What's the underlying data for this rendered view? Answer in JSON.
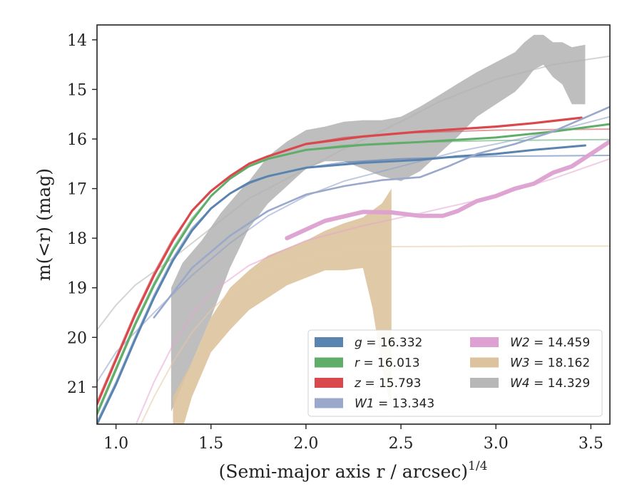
{
  "chart_data": {
    "type": "line",
    "xlabel": "(Semi-major axis r / arcsec)",
    "xlabel_sup": "1/4",
    "ylabel_main": "m(<r) (mag)",
    "xlim": [
      0.9,
      3.6
    ],
    "ylim": [
      21.75,
      13.7
    ],
    "y_inverted": true,
    "grid": false,
    "legend_position": "lower-right",
    "xticks": [
      1.0,
      1.5,
      2.0,
      2.5,
      3.0,
      3.5
    ],
    "xtick_labels": [
      "1.0",
      "1.5",
      "2.0",
      "2.5",
      "3.0",
      "3.5"
    ],
    "yticks": [
      14,
      15,
      16,
      17,
      18,
      19,
      20,
      21
    ],
    "ytick_labels": [
      "14",
      "15",
      "16",
      "17",
      "18",
      "19",
      "20",
      "21"
    ],
    "series": [
      {
        "key": "g",
        "name": "g = 16.332",
        "var": "g",
        "val": "= 16.332",
        "color": "#4c72b0",
        "fill": "#5a84b0",
        "model": [
          [
            0.9,
            21.7
          ],
          [
            1.0,
            20.9
          ],
          [
            1.1,
            20.0
          ],
          [
            1.2,
            19.15
          ],
          [
            1.3,
            18.4
          ],
          [
            1.4,
            17.8
          ],
          [
            1.5,
            17.4
          ],
          [
            1.6,
            17.1
          ],
          [
            1.7,
            16.9
          ],
          [
            1.8,
            16.75
          ],
          [
            2.0,
            16.58
          ],
          [
            2.2,
            16.47
          ],
          [
            2.5,
            16.4
          ],
          [
            3.0,
            16.35
          ],
          [
            3.6,
            16.33
          ]
        ],
        "obs": [
          [
            0.9,
            21.75
          ],
          [
            1.0,
            20.95
          ],
          [
            1.1,
            20.05
          ],
          [
            1.2,
            19.2
          ],
          [
            1.3,
            18.45
          ],
          [
            1.4,
            17.85
          ],
          [
            1.5,
            17.4
          ],
          [
            1.6,
            17.1
          ],
          [
            1.7,
            16.88
          ],
          [
            1.8,
            16.75
          ],
          [
            2.0,
            16.58
          ],
          [
            2.3,
            16.48
          ],
          [
            2.6,
            16.42
          ],
          [
            2.8,
            16.35
          ],
          [
            3.0,
            16.3
          ],
          [
            3.2,
            16.22
          ],
          [
            3.47,
            16.13
          ]
        ]
      },
      {
        "key": "r",
        "name": "r = 16.013",
        "var": "r",
        "val": "= 16.013",
        "color": "#55a868",
        "fill": "#60ad6a",
        "model": [
          [
            0.9,
            21.5
          ],
          [
            1.0,
            20.6
          ],
          [
            1.1,
            19.7
          ],
          [
            1.2,
            18.9
          ],
          [
            1.3,
            18.2
          ],
          [
            1.4,
            17.6
          ],
          [
            1.5,
            17.15
          ],
          [
            1.6,
            16.8
          ],
          [
            1.7,
            16.55
          ],
          [
            1.8,
            16.4
          ],
          [
            2.0,
            16.22
          ],
          [
            2.2,
            16.13
          ],
          [
            2.5,
            16.07
          ],
          [
            3.0,
            16.03
          ],
          [
            3.6,
            16.01
          ]
        ],
        "obs": [
          [
            0.9,
            21.55
          ],
          [
            1.0,
            20.65
          ],
          [
            1.1,
            19.75
          ],
          [
            1.2,
            18.95
          ],
          [
            1.3,
            18.25
          ],
          [
            1.4,
            17.65
          ],
          [
            1.5,
            17.15
          ],
          [
            1.6,
            16.8
          ],
          [
            1.7,
            16.55
          ],
          [
            1.8,
            16.4
          ],
          [
            2.0,
            16.22
          ],
          [
            2.3,
            16.12
          ],
          [
            2.6,
            16.06
          ],
          [
            3.0,
            15.97
          ],
          [
            3.3,
            15.85
          ],
          [
            3.6,
            15.7
          ]
        ]
      },
      {
        "key": "z",
        "name": "z = 15.793",
        "var": "z",
        "val": "= 15.793",
        "color": "#c44e52",
        "fill": "#d9484d",
        "model": [
          [
            0.9,
            21.3
          ],
          [
            1.0,
            20.4
          ],
          [
            1.1,
            19.5
          ],
          [
            1.2,
            18.7
          ],
          [
            1.3,
            18.0
          ],
          [
            1.4,
            17.45
          ],
          [
            1.5,
            17.05
          ],
          [
            1.6,
            16.75
          ],
          [
            1.7,
            16.5
          ],
          [
            1.8,
            16.35
          ],
          [
            2.0,
            16.1
          ],
          [
            2.2,
            15.97
          ],
          [
            2.5,
            15.88
          ],
          [
            3.0,
            15.82
          ],
          [
            3.6,
            15.8
          ]
        ],
        "obs": [
          [
            0.9,
            21.35
          ],
          [
            1.0,
            20.45
          ],
          [
            1.1,
            19.55
          ],
          [
            1.2,
            18.75
          ],
          [
            1.3,
            18.05
          ],
          [
            1.4,
            17.45
          ],
          [
            1.5,
            17.05
          ],
          [
            1.6,
            16.75
          ],
          [
            1.7,
            16.5
          ],
          [
            1.8,
            16.35
          ],
          [
            2.0,
            16.1
          ],
          [
            2.3,
            15.95
          ],
          [
            2.6,
            15.85
          ],
          [
            3.0,
            15.75
          ],
          [
            3.2,
            15.68
          ],
          [
            3.45,
            15.57
          ]
        ]
      },
      {
        "key": "W1",
        "name": "W1 = 13.343",
        "var": "W1",
        "val": "= 13.343",
        "color": "#8c9cc4",
        "fill": "#9aa8cb",
        "model": [
          [
            0.9,
            20.9
          ],
          [
            1.0,
            20.3
          ],
          [
            1.2,
            19.5
          ],
          [
            1.4,
            18.75
          ],
          [
            1.6,
            18.1
          ],
          [
            1.8,
            17.55
          ],
          [
            2.0,
            17.15
          ],
          [
            2.2,
            16.85
          ],
          [
            2.5,
            16.55
          ],
          [
            2.8,
            16.25
          ],
          [
            3.0,
            16.1
          ],
          [
            3.3,
            15.85
          ],
          [
            3.6,
            15.55
          ]
        ],
        "obs": [
          [
            1.2,
            19.6
          ],
          [
            1.4,
            18.6
          ],
          [
            1.6,
            17.95
          ],
          [
            1.8,
            17.45
          ],
          [
            2.0,
            17.12
          ],
          [
            2.2,
            16.95
          ],
          [
            2.4,
            16.83
          ],
          [
            2.6,
            16.77
          ],
          [
            2.75,
            16.55
          ],
          [
            2.9,
            16.3
          ],
          [
            3.1,
            16.1
          ],
          [
            3.3,
            15.85
          ],
          [
            3.45,
            15.6
          ],
          [
            3.6,
            15.35
          ]
        ]
      },
      {
        "key": "W2",
        "name": "W2 = 14.459",
        "var": "W2",
        "val": "= 14.459",
        "color": "#e6a2cf",
        "fill": "#dda0d0",
        "model": [
          [
            1.0,
            22.5
          ],
          [
            1.1,
            21.8
          ],
          [
            1.2,
            20.9
          ],
          [
            1.3,
            20.15
          ],
          [
            1.4,
            19.55
          ],
          [
            1.5,
            19.1
          ],
          [
            1.7,
            18.55
          ],
          [
            2.0,
            18.05
          ],
          [
            2.3,
            17.75
          ],
          [
            2.6,
            17.5
          ],
          [
            3.0,
            17.15
          ],
          [
            3.3,
            16.8
          ],
          [
            3.6,
            16.4
          ]
        ],
        "obs": [
          [
            1.9,
            18.0
          ],
          [
            2.1,
            17.65
          ],
          [
            2.3,
            17.47
          ],
          [
            2.45,
            17.48
          ],
          [
            2.6,
            17.55
          ],
          [
            2.72,
            17.55
          ],
          [
            2.8,
            17.45
          ],
          [
            2.9,
            17.25
          ],
          [
            3.0,
            17.15
          ],
          [
            3.1,
            17.0
          ],
          [
            3.2,
            16.9
          ],
          [
            3.3,
            16.68
          ],
          [
            3.4,
            16.55
          ],
          [
            3.5,
            16.3
          ],
          [
            3.6,
            16.05
          ]
        ]
      },
      {
        "key": "W3",
        "name": "W3 = 18.162",
        "var": "W3",
        "val": "= 18.162",
        "color": "#e5c9a2",
        "fill": "#ddc39d",
        "model": [
          [
            1.1,
            22.0
          ],
          [
            1.2,
            21.2
          ],
          [
            1.3,
            20.5
          ],
          [
            1.4,
            19.9
          ],
          [
            1.5,
            19.45
          ],
          [
            1.6,
            19.1
          ],
          [
            1.8,
            18.65
          ],
          [
            2.0,
            18.4
          ],
          [
            2.2,
            18.25
          ],
          [
            2.45,
            18.17
          ],
          [
            3.0,
            18.16
          ],
          [
            3.6,
            18.16
          ]
        ],
        "obs_upper": [
          [
            1.3,
            21.2
          ],
          [
            1.4,
            20.5
          ],
          [
            1.5,
            19.6
          ],
          [
            1.6,
            19.0
          ],
          [
            1.7,
            18.65
          ],
          [
            1.8,
            18.35
          ],
          [
            1.9,
            18.2
          ],
          [
            2.0,
            18.05
          ],
          [
            2.1,
            17.85
          ],
          [
            2.2,
            17.7
          ],
          [
            2.3,
            17.58
          ],
          [
            2.4,
            17.3
          ],
          [
            2.45,
            17.0
          ]
        ],
        "obs_lower": [
          [
            1.3,
            22.5
          ],
          [
            1.4,
            21.2
          ],
          [
            1.5,
            20.3
          ],
          [
            1.6,
            19.85
          ],
          [
            1.7,
            19.45
          ],
          [
            1.8,
            19.2
          ],
          [
            1.9,
            18.95
          ],
          [
            2.0,
            18.8
          ],
          [
            2.1,
            18.65
          ],
          [
            2.2,
            18.65
          ],
          [
            2.3,
            18.6
          ],
          [
            2.35,
            19.4
          ],
          [
            2.4,
            20.6
          ],
          [
            2.45,
            21.5
          ]
        ]
      },
      {
        "key": "W4",
        "name": "W4 = 14.329",
        "var": "W4",
        "val": "= 14.329",
        "color": "#b0b0b0",
        "fill": "#b7b7b7",
        "model": [
          [
            0.9,
            19.85
          ],
          [
            1.0,
            19.35
          ],
          [
            1.1,
            18.95
          ],
          [
            1.3,
            18.4
          ],
          [
            1.5,
            17.8
          ],
          [
            1.7,
            17.2
          ],
          [
            2.0,
            16.6
          ],
          [
            2.2,
            16.2
          ],
          [
            2.5,
            15.65
          ],
          [
            2.7,
            15.25
          ],
          [
            3.0,
            14.8
          ],
          [
            3.3,
            14.5
          ],
          [
            3.6,
            14.33
          ]
        ],
        "obs_upper": [
          [
            1.29,
            19.0
          ],
          [
            1.35,
            18.5
          ],
          [
            1.45,
            18.05
          ],
          [
            1.55,
            17.5
          ],
          [
            1.65,
            17.05
          ],
          [
            1.7,
            16.85
          ],
          [
            1.8,
            16.35
          ],
          [
            1.9,
            16.05
          ],
          [
            2.0,
            15.82
          ],
          [
            2.1,
            15.75
          ],
          [
            2.2,
            15.65
          ],
          [
            2.3,
            15.62
          ],
          [
            2.4,
            15.62
          ],
          [
            2.5,
            15.55
          ],
          [
            2.6,
            15.35
          ],
          [
            2.7,
            15.12
          ],
          [
            2.8,
            14.88
          ],
          [
            2.9,
            14.65
          ],
          [
            3.0,
            14.45
          ],
          [
            3.1,
            14.25
          ],
          [
            3.15,
            14.05
          ],
          [
            3.2,
            13.9
          ],
          [
            3.25,
            13.9
          ],
          [
            3.3,
            14.05
          ],
          [
            3.35,
            14.05
          ],
          [
            3.4,
            14.15
          ],
          [
            3.47,
            14.1
          ]
        ],
        "obs_lower": [
          [
            1.29,
            21.5
          ],
          [
            1.4,
            20.5
          ],
          [
            1.5,
            19.6
          ],
          [
            1.6,
            18.6
          ],
          [
            1.7,
            17.8
          ],
          [
            1.8,
            17.3
          ],
          [
            1.9,
            16.95
          ],
          [
            2.0,
            16.6
          ],
          [
            2.1,
            16.45
          ],
          [
            2.2,
            16.45
          ],
          [
            2.3,
            16.6
          ],
          [
            2.4,
            16.75
          ],
          [
            2.5,
            16.85
          ],
          [
            2.6,
            16.65
          ],
          [
            2.7,
            16.3
          ],
          [
            2.8,
            15.95
          ],
          [
            2.9,
            15.55
          ],
          [
            3.0,
            15.3
          ],
          [
            3.1,
            15.05
          ],
          [
            3.15,
            14.85
          ],
          [
            3.2,
            14.6
          ],
          [
            3.25,
            14.5
          ],
          [
            3.3,
            14.75
          ],
          [
            3.35,
            14.9
          ],
          [
            3.4,
            15.3
          ],
          [
            3.47,
            15.3
          ]
        ]
      }
    ]
  }
}
